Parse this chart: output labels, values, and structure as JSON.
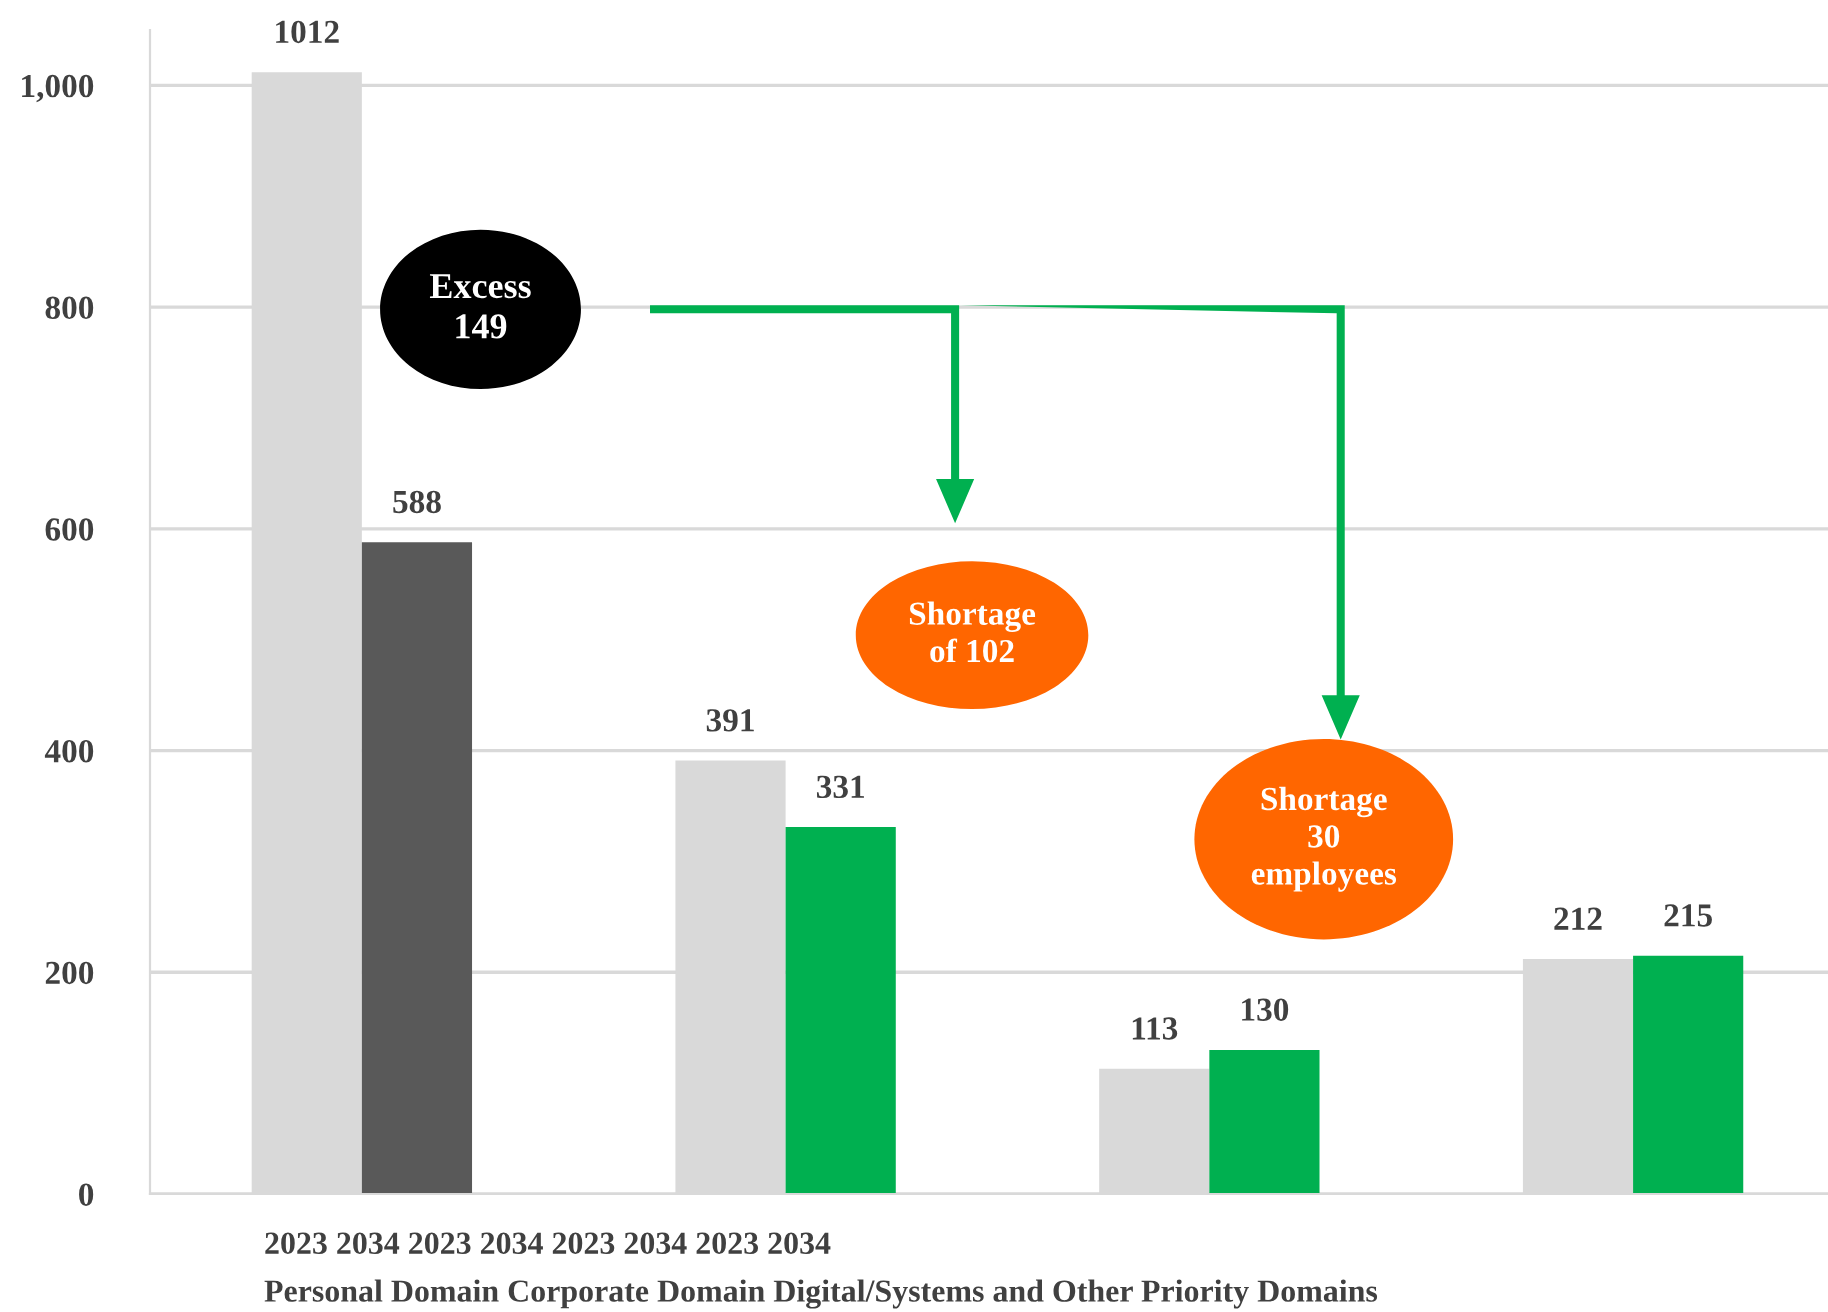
{
  "chart_data": {
    "type": "bar",
    "categories": [
      null,
      null,
      null,
      null
    ],
    "series": [
      {
        "color": "#d9d9d9",
        "values": [
          1012,
          391,
          113,
          212
        ]
      },
      {
        "colors": [
          "#595959",
          "#00b050",
          "#00b050",
          "#00b050"
        ],
        "values": [
          588,
          331,
          130,
          215
        ]
      }
    ],
    "ylim": [
      0,
      1050
    ],
    "yticks": [
      0,
      200,
      400,
      600,
      800,
      {
        "value": 1000,
        "label": "1,000"
      }
    ],
    "grid": "y",
    "data_labels": true,
    "annotations": [
      "Excess\n149",
      "Shortage\nof 102",
      "Shortage\n30\nemployees",
      "2023 2034 2023 2034 2023 2034 2023 2034",
      "Personal Domain Corporate Domain Digital/Systems and Other Priority Domains"
    ]
  }
}
